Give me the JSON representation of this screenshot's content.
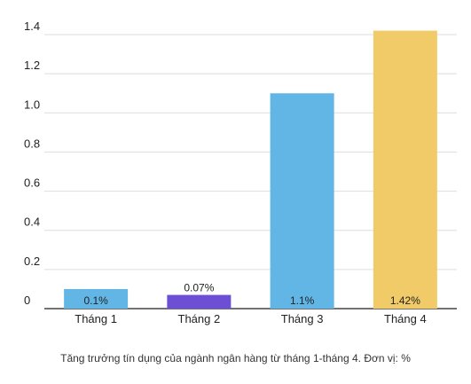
{
  "chart_data": {
    "type": "bar",
    "categories": [
      "Tháng 1",
      "Tháng 2",
      "Tháng 3",
      "Tháng 4"
    ],
    "values": [
      0.1,
      0.07,
      1.1,
      1.42
    ],
    "data_labels": [
      "0.1%",
      "0.07%",
      "1.1%",
      "1.42%"
    ],
    "bar_colors": [
      "#62b6e6",
      "#6d4fd6",
      "#62b6e6",
      "#f0cb67"
    ],
    "yticks": [
      0,
      0.2,
      0.4,
      0.6,
      0.8,
      1.0,
      1.2,
      1.4
    ],
    "ytick_labels": [
      "0",
      "0.2",
      "0.4",
      "0.6",
      "0.8",
      "1.0",
      "1.2",
      "1.4"
    ],
    "ylim": [
      0,
      1.4
    ],
    "grid": true,
    "title": "",
    "xlabel": "",
    "ylabel": "",
    "caption": "Tăng trưởng tín dụng của ngành ngân hàng từ tháng 1-tháng 4. Đơn vị: %"
  }
}
